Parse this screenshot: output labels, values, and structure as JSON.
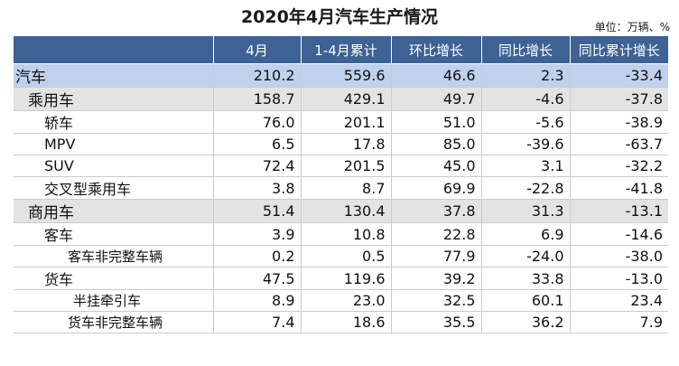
{
  "title": "2020年4月汽车生产情况",
  "unit": "单位：万辆、%",
  "headers": [
    "",
    "4月",
    "1-4月累计",
    "环比增长",
    "同比增长",
    "同比累计增长"
  ],
  "rows": [
    {
      "name": "汽车",
      "level": 0,
      "values": [
        "210.2",
        "559.6",
        "46.6",
        "2.3",
        "-33.4"
      ]
    },
    {
      "name": "乘用车",
      "level": 1,
      "values": [
        "158.7",
        "429.1",
        "49.7",
        "-4.6",
        "-37.8"
      ]
    },
    {
      "name": "轿车",
      "level": 2,
      "values": [
        "76.0",
        "201.1",
        "51.0",
        "-5.6",
        "-38.9"
      ]
    },
    {
      "name": "MPV",
      "level": 2,
      "values": [
        "6.5",
        "17.8",
        "85.0",
        "-39.6",
        "-63.7"
      ]
    },
    {
      "name": "SUV",
      "level": 2,
      "values": [
        "72.4",
        "201.5",
        "45.0",
        "3.1",
        "-32.2"
      ]
    },
    {
      "name": "交叉型乘用车",
      "level": 2,
      "values": [
        "3.8",
        "8.7",
        "69.9",
        "-22.8",
        "-41.8"
      ]
    },
    {
      "name": "商用车",
      "level": 1,
      "values": [
        "51.4",
        "130.4",
        "37.8",
        "31.3",
        "-13.1"
      ]
    },
    {
      "name": "客车",
      "level": 2,
      "values": [
        "3.9",
        "10.8",
        "22.8",
        "6.9",
        "-14.6"
      ]
    },
    {
      "name": "客车非完整车辆",
      "level": 3,
      "values": [
        "0.2",
        "0.5",
        "77.9",
        "-24.0",
        "-38.0"
      ]
    },
    {
      "name": "货车",
      "level": 2,
      "values": [
        "47.5",
        "119.6",
        "39.2",
        "33.8",
        "-13.0"
      ]
    },
    {
      "name": "半挂牵引车",
      "level": 4,
      "values": [
        "8.9",
        "23.0",
        "32.5",
        "60.1",
        "23.4"
      ]
    },
    {
      "name": "货车非完整车辆",
      "level": 3,
      "values": [
        "7.4",
        "18.6",
        "35.5",
        "36.2",
        "7.9"
      ]
    }
  ]
}
